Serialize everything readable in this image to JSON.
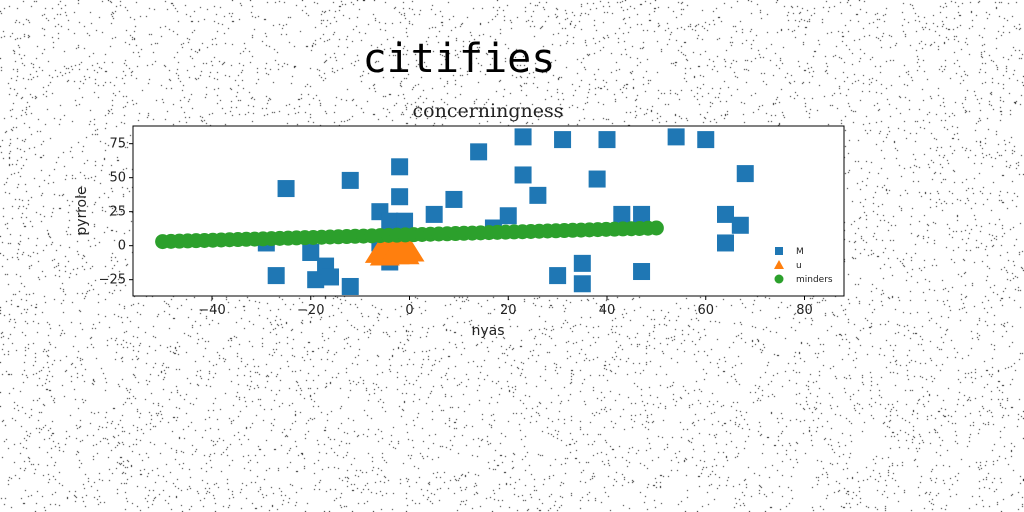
{
  "figure_title": "citifies",
  "chart_data": {
    "type": "scatter",
    "title": "concerningness",
    "xlabel": "nyas",
    "ylabel": "pyrrole",
    "xlim": [
      -56,
      88
    ],
    "ylim": [
      -37,
      88
    ],
    "xticks": [
      -40,
      -20,
      0,
      20,
      40,
      60,
      80
    ],
    "yticks": [
      -25,
      0,
      25,
      50,
      75
    ],
    "grid": false,
    "legend_position": "lower-right",
    "series": [
      {
        "name": "M",
        "marker": "square",
        "color": "#1f77b4",
        "points": [
          [
            -25,
            42
          ],
          [
            -12,
            48
          ],
          [
            -6,
            25
          ],
          [
            -4,
            18
          ],
          [
            -2,
            58
          ],
          [
            -2,
            36
          ],
          [
            -1,
            18
          ],
          [
            5,
            23
          ],
          [
            9,
            34
          ],
          [
            14,
            69
          ],
          [
            17,
            13
          ],
          [
            20,
            22
          ],
          [
            23,
            80
          ],
          [
            23,
            52
          ],
          [
            26,
            37
          ],
          [
            31,
            78
          ],
          [
            38,
            49
          ],
          [
            40,
            78
          ],
          [
            43,
            23
          ],
          [
            47,
            23
          ],
          [
            54,
            80
          ],
          [
            60,
            78
          ],
          [
            64,
            23
          ],
          [
            64,
            2
          ],
          [
            67,
            15
          ],
          [
            68,
            53
          ],
          [
            -29,
            2
          ],
          [
            -20,
            -5
          ],
          [
            -27,
            -22
          ],
          [
            -19,
            -25
          ],
          [
            -17,
            -15
          ],
          [
            -16,
            -23
          ],
          [
            -12,
            -30
          ],
          [
            -4,
            -12
          ],
          [
            30,
            -22
          ],
          [
            35,
            -13
          ],
          [
            35,
            -28
          ],
          [
            47,
            -19
          ],
          [
            -2,
            2
          ],
          [
            -6,
            2
          ]
        ]
      },
      {
        "name": "u",
        "marker": "triangle",
        "color": "#ff7f0e",
        "points": [
          [
            -6,
            -6
          ],
          [
            -5,
            -4
          ],
          [
            -4,
            -6
          ],
          [
            -3,
            -3
          ],
          [
            -2,
            -5
          ],
          [
            -1,
            -4
          ],
          [
            0,
            -5
          ],
          [
            -5,
            -8
          ],
          [
            -3,
            -7
          ],
          [
            -1,
            -7
          ]
        ]
      },
      {
        "name": "minders",
        "marker": "circle",
        "color": "#2ca02c",
        "line_from": [
          -50,
          3
        ],
        "line_to": [
          50,
          13
        ],
        "count": 60
      }
    ]
  }
}
